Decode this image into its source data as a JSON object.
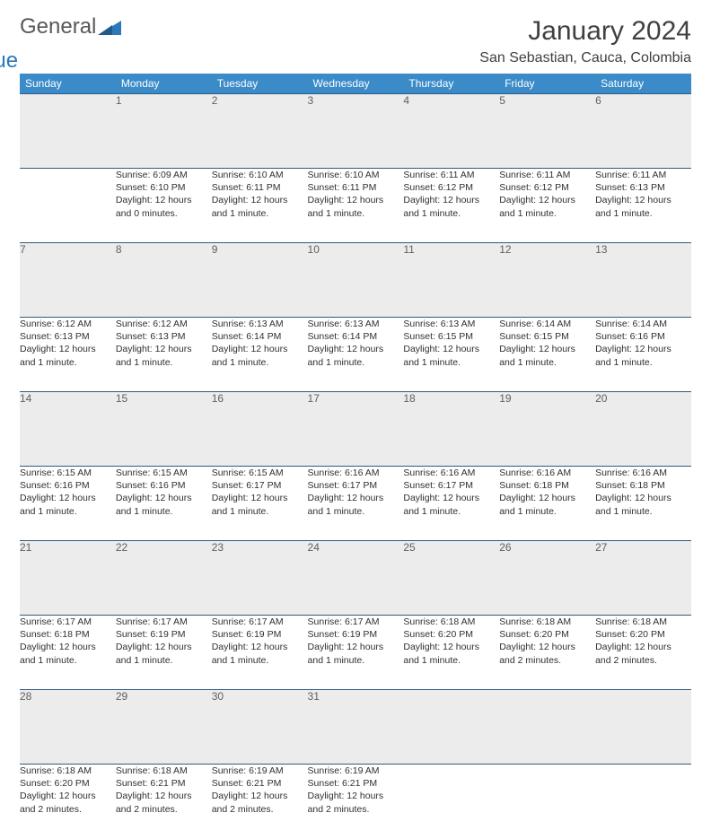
{
  "logo": {
    "word1": "General",
    "word2": "Blue"
  },
  "title": "January 2024",
  "subtitle": "San Sebastian, Cauca, Colombia",
  "header_bg": "#3b8bc9",
  "daynum_bg": "#ececec",
  "border_color": "#2a5d85",
  "day_headers": [
    "Sunday",
    "Monday",
    "Tuesday",
    "Wednesday",
    "Thursday",
    "Friday",
    "Saturday"
  ],
  "weeks": [
    {
      "nums": [
        "",
        "1",
        "2",
        "3",
        "4",
        "5",
        "6"
      ],
      "cells": [
        null,
        {
          "sunrise": "Sunrise: 6:09 AM",
          "sunset": "Sunset: 6:10 PM",
          "day1": "Daylight: 12 hours",
          "day2": "and 0 minutes."
        },
        {
          "sunrise": "Sunrise: 6:10 AM",
          "sunset": "Sunset: 6:11 PM",
          "day1": "Daylight: 12 hours",
          "day2": "and 1 minute."
        },
        {
          "sunrise": "Sunrise: 6:10 AM",
          "sunset": "Sunset: 6:11 PM",
          "day1": "Daylight: 12 hours",
          "day2": "and 1 minute."
        },
        {
          "sunrise": "Sunrise: 6:11 AM",
          "sunset": "Sunset: 6:12 PM",
          "day1": "Daylight: 12 hours",
          "day2": "and 1 minute."
        },
        {
          "sunrise": "Sunrise: 6:11 AM",
          "sunset": "Sunset: 6:12 PM",
          "day1": "Daylight: 12 hours",
          "day2": "and 1 minute."
        },
        {
          "sunrise": "Sunrise: 6:11 AM",
          "sunset": "Sunset: 6:13 PM",
          "day1": "Daylight: 12 hours",
          "day2": "and 1 minute."
        }
      ]
    },
    {
      "nums": [
        "7",
        "8",
        "9",
        "10",
        "11",
        "12",
        "13"
      ],
      "cells": [
        {
          "sunrise": "Sunrise: 6:12 AM",
          "sunset": "Sunset: 6:13 PM",
          "day1": "Daylight: 12 hours",
          "day2": "and 1 minute."
        },
        {
          "sunrise": "Sunrise: 6:12 AM",
          "sunset": "Sunset: 6:13 PM",
          "day1": "Daylight: 12 hours",
          "day2": "and 1 minute."
        },
        {
          "sunrise": "Sunrise: 6:13 AM",
          "sunset": "Sunset: 6:14 PM",
          "day1": "Daylight: 12 hours",
          "day2": "and 1 minute."
        },
        {
          "sunrise": "Sunrise: 6:13 AM",
          "sunset": "Sunset: 6:14 PM",
          "day1": "Daylight: 12 hours",
          "day2": "and 1 minute."
        },
        {
          "sunrise": "Sunrise: 6:13 AM",
          "sunset": "Sunset: 6:15 PM",
          "day1": "Daylight: 12 hours",
          "day2": "and 1 minute."
        },
        {
          "sunrise": "Sunrise: 6:14 AM",
          "sunset": "Sunset: 6:15 PM",
          "day1": "Daylight: 12 hours",
          "day2": "and 1 minute."
        },
        {
          "sunrise": "Sunrise: 6:14 AM",
          "sunset": "Sunset: 6:16 PM",
          "day1": "Daylight: 12 hours",
          "day2": "and 1 minute."
        }
      ]
    },
    {
      "nums": [
        "14",
        "15",
        "16",
        "17",
        "18",
        "19",
        "20"
      ],
      "cells": [
        {
          "sunrise": "Sunrise: 6:15 AM",
          "sunset": "Sunset: 6:16 PM",
          "day1": "Daylight: 12 hours",
          "day2": "and 1 minute."
        },
        {
          "sunrise": "Sunrise: 6:15 AM",
          "sunset": "Sunset: 6:16 PM",
          "day1": "Daylight: 12 hours",
          "day2": "and 1 minute."
        },
        {
          "sunrise": "Sunrise: 6:15 AM",
          "sunset": "Sunset: 6:17 PM",
          "day1": "Daylight: 12 hours",
          "day2": "and 1 minute."
        },
        {
          "sunrise": "Sunrise: 6:16 AM",
          "sunset": "Sunset: 6:17 PM",
          "day1": "Daylight: 12 hours",
          "day2": "and 1 minute."
        },
        {
          "sunrise": "Sunrise: 6:16 AM",
          "sunset": "Sunset: 6:17 PM",
          "day1": "Daylight: 12 hours",
          "day2": "and 1 minute."
        },
        {
          "sunrise": "Sunrise: 6:16 AM",
          "sunset": "Sunset: 6:18 PM",
          "day1": "Daylight: 12 hours",
          "day2": "and 1 minute."
        },
        {
          "sunrise": "Sunrise: 6:16 AM",
          "sunset": "Sunset: 6:18 PM",
          "day1": "Daylight: 12 hours",
          "day2": "and 1 minute."
        }
      ]
    },
    {
      "nums": [
        "21",
        "22",
        "23",
        "24",
        "25",
        "26",
        "27"
      ],
      "cells": [
        {
          "sunrise": "Sunrise: 6:17 AM",
          "sunset": "Sunset: 6:18 PM",
          "day1": "Daylight: 12 hours",
          "day2": "and 1 minute."
        },
        {
          "sunrise": "Sunrise: 6:17 AM",
          "sunset": "Sunset: 6:19 PM",
          "day1": "Daylight: 12 hours",
          "day2": "and 1 minute."
        },
        {
          "sunrise": "Sunrise: 6:17 AM",
          "sunset": "Sunset: 6:19 PM",
          "day1": "Daylight: 12 hours",
          "day2": "and 1 minute."
        },
        {
          "sunrise": "Sunrise: 6:17 AM",
          "sunset": "Sunset: 6:19 PM",
          "day1": "Daylight: 12 hours",
          "day2": "and 1 minute."
        },
        {
          "sunrise": "Sunrise: 6:18 AM",
          "sunset": "Sunset: 6:20 PM",
          "day1": "Daylight: 12 hours",
          "day2": "and 1 minute."
        },
        {
          "sunrise": "Sunrise: 6:18 AM",
          "sunset": "Sunset: 6:20 PM",
          "day1": "Daylight: 12 hours",
          "day2": "and 2 minutes."
        },
        {
          "sunrise": "Sunrise: 6:18 AM",
          "sunset": "Sunset: 6:20 PM",
          "day1": "Daylight: 12 hours",
          "day2": "and 2 minutes."
        }
      ]
    },
    {
      "nums": [
        "28",
        "29",
        "30",
        "31",
        "",
        "",
        ""
      ],
      "cells": [
        {
          "sunrise": "Sunrise: 6:18 AM",
          "sunset": "Sunset: 6:20 PM",
          "day1": "Daylight: 12 hours",
          "day2": "and 2 minutes."
        },
        {
          "sunrise": "Sunrise: 6:18 AM",
          "sunset": "Sunset: 6:21 PM",
          "day1": "Daylight: 12 hours",
          "day2": "and 2 minutes."
        },
        {
          "sunrise": "Sunrise: 6:19 AM",
          "sunset": "Sunset: 6:21 PM",
          "day1": "Daylight: 12 hours",
          "day2": "and 2 minutes."
        },
        {
          "sunrise": "Sunrise: 6:19 AM",
          "sunset": "Sunset: 6:21 PM",
          "day1": "Daylight: 12 hours",
          "day2": "and 2 minutes."
        },
        null,
        null,
        null
      ]
    }
  ]
}
